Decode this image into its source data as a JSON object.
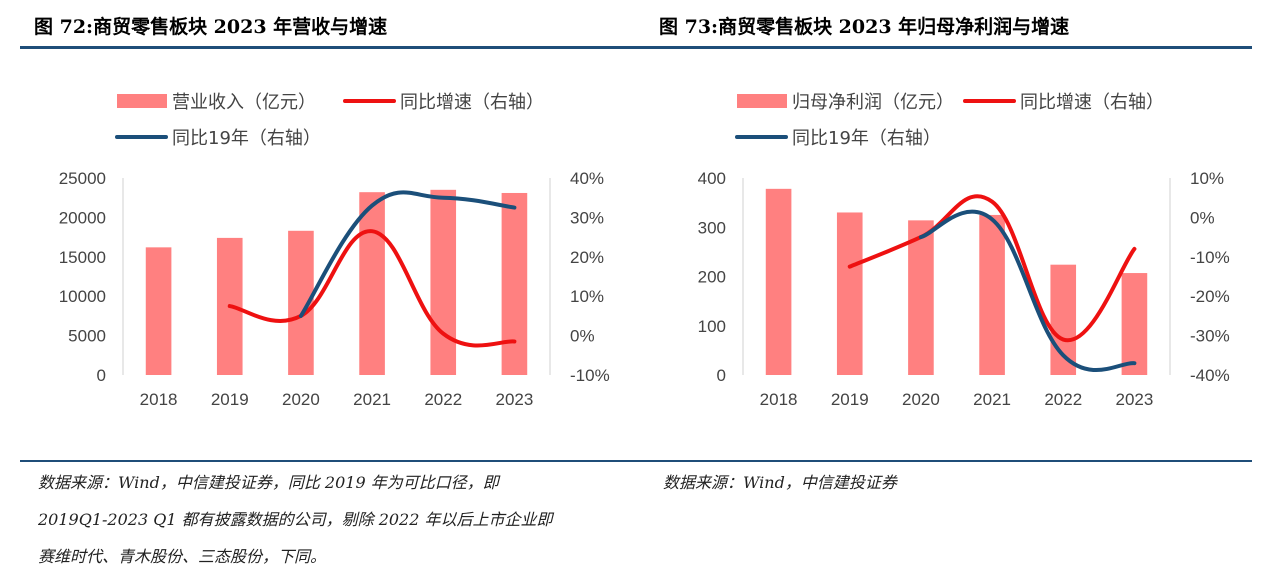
{
  "figures": {
    "left_title": "图 72:商贸零售板块 2023 年营收与增速",
    "right_title": "图 73:商贸零售板块 2023 年归母净利润与增速"
  },
  "sources": {
    "left_lines": [
      "数据来源：Wind，中信建投证券，同比 2019 年为可比口径，即",
      "2019Q1-2023 Q1 都有披露数据的公司，剔除 2022 年以后上市企业即",
      "赛维时代、青木股份、三态股份，下同。"
    ],
    "right_lines": [
      "数据来源：Wind，中信建投证券"
    ]
  },
  "colors": {
    "bar": "#ff8080",
    "line_yoy": "#ee1111",
    "line_vs19": "#1b4f7a",
    "rule": "#1f4e79"
  },
  "chart_data": [
    {
      "type": "bar+line",
      "title": "图 72:商贸零售板块 2023 年营收与增速",
      "categories": [
        "2018",
        "2019",
        "2020",
        "2021",
        "2022",
        "2023"
      ],
      "left_axis": {
        "ticks": [
          "0",
          "5000",
          "10000",
          "15000",
          "20000",
          "25000"
        ],
        "ylim": [
          0,
          25000
        ]
      },
      "right_axis": {
        "ticks": [
          "-10%",
          "0%",
          "10%",
          "20%",
          "30%",
          "40%"
        ],
        "ylim": [
          -10,
          40
        ]
      },
      "series": [
        {
          "name": "营业收入（亿元）",
          "kind": "bar",
          "axis": "left",
          "values": [
            16200,
            17400,
            18300,
            23200,
            23500,
            23100
          ]
        },
        {
          "name": "同比增速（右轴）",
          "kind": "line",
          "axis": "right",
          "values": [
            null,
            7.5,
            5,
            26.5,
            0.5,
            -1.5
          ]
        },
        {
          "name": "同比19年（右轴）",
          "kind": "line",
          "axis": "right",
          "values": [
            null,
            null,
            5,
            33,
            35,
            32.5
          ]
        }
      ],
      "legend_placement": "top"
    },
    {
      "type": "bar+line",
      "title": "图 73:商贸零售板块 2023 年归母净利润与增速",
      "categories": [
        "2018",
        "2019",
        "2020",
        "2021",
        "2022",
        "2023"
      ],
      "left_axis": {
        "ticks": [
          "0",
          "100",
          "200",
          "300",
          "400"
        ],
        "ylim": [
          0,
          400
        ]
      },
      "right_axis": {
        "ticks": [
          "-40%",
          "-30%",
          "-20%",
          "-10%",
          "0%",
          "10%"
        ],
        "ylim": [
          -40,
          10
        ]
      },
      "series": [
        {
          "name": "归母净利润（亿元）",
          "kind": "bar",
          "axis": "left",
          "values": [
            378,
            330,
            314,
            325,
            224,
            207
          ]
        },
        {
          "name": "同比增速（右轴）",
          "kind": "line",
          "axis": "right",
          "values": [
            null,
            -12.5,
            -5,
            4,
            -31,
            -8
          ]
        },
        {
          "name": "同比19年（右轴）",
          "kind": "line",
          "axis": "right",
          "values": [
            null,
            null,
            -5,
            -0.5,
            -35,
            -37
          ]
        }
      ],
      "legend_placement": "top"
    }
  ]
}
